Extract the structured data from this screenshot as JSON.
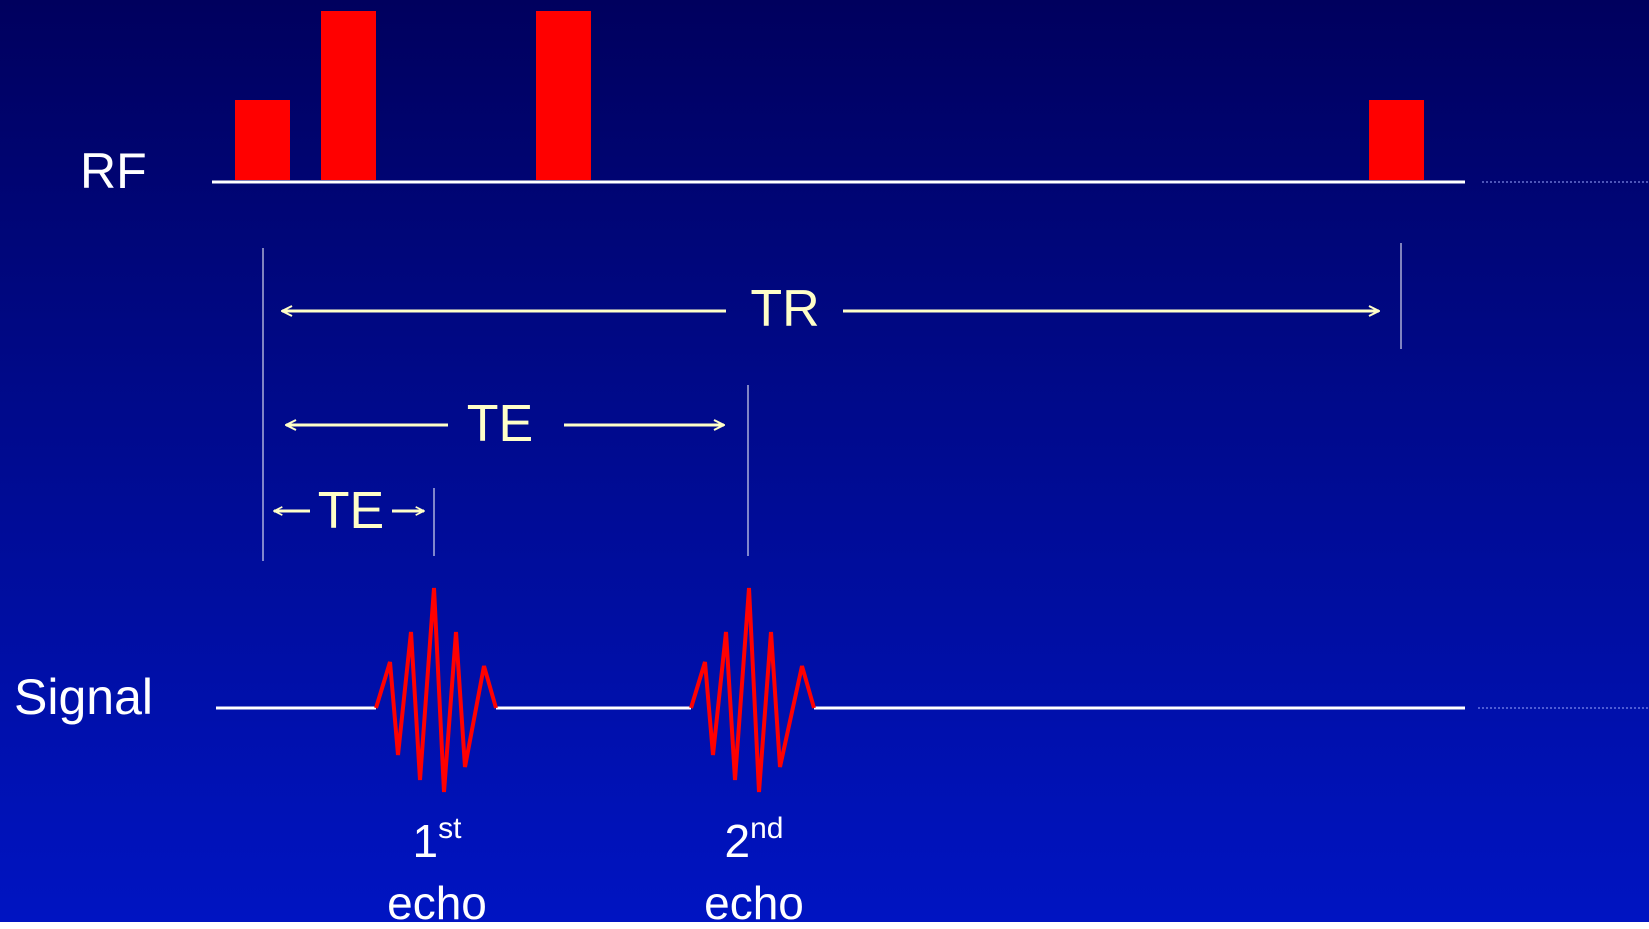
{
  "rows": {
    "rf": "RF",
    "signal": "Signal"
  },
  "intervals": {
    "tr": "TR",
    "te_long": "TE",
    "te_short": "TE"
  },
  "echoes": [
    {
      "number": "1",
      "suffix": "st",
      "word": "echo"
    },
    {
      "number": "2",
      "suffix": "nd",
      "word": "echo"
    }
  ],
  "icons": {
    "rf-pulse": "red rectangle",
    "echo-waveform": "red oscillating burst",
    "arrow": "double-headed arrow"
  },
  "colors": {
    "background_top": "#00005e",
    "background_bottom": "#0014c2",
    "pulse": "#ff0000",
    "baseline": "#ffffff",
    "interval": "#ffffc8"
  }
}
